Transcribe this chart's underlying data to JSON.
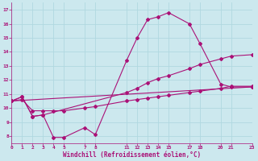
{
  "xlabel": "Windchill (Refroidissement éolien,°C)",
  "bg_color": "#cce8ee",
  "grid_color": "#b0d8e0",
  "line_color": "#aa1177",
  "ylim": [
    7.5,
    17.5
  ],
  "xlim": [
    0,
    23
  ],
  "ytick_vals": [
    8,
    9,
    10,
    11,
    12,
    13,
    14,
    15,
    16,
    17
  ],
  "xtick_vals": [
    0,
    1,
    2,
    3,
    4,
    5,
    7,
    8,
    11,
    12,
    13,
    14,
    15,
    17,
    18,
    20,
    21,
    23
  ],
  "xtick_labels": [
    "0",
    "1",
    "2",
    "3",
    "4",
    "5",
    "7",
    "8",
    "11",
    "12",
    "13",
    "14",
    "15",
    "17",
    "18",
    "20",
    "21",
    "23"
  ],
  "line1_x": [
    0,
    1,
    2,
    3,
    4,
    5,
    7,
    8,
    11,
    12,
    13,
    14,
    15,
    17,
    18,
    20,
    21,
    23
  ],
  "line1_y": [
    10.5,
    10.8,
    9.4,
    9.5,
    7.9,
    7.9,
    8.6,
    8.1,
    13.4,
    15.0,
    16.3,
    16.5,
    16.8,
    16.0,
    14.6,
    11.7,
    11.5,
    11.5
  ],
  "line2_x": [
    0,
    1,
    2,
    3,
    11,
    12,
    13,
    14,
    15,
    17,
    18,
    20,
    21,
    23
  ],
  "line2_y": [
    10.5,
    10.8,
    9.4,
    9.5,
    11.1,
    11.4,
    11.8,
    12.1,
    12.3,
    12.8,
    13.1,
    13.5,
    13.7,
    13.8
  ],
  "line3_x": [
    0,
    1,
    2,
    3,
    4,
    5,
    7,
    8,
    11,
    12,
    13,
    14,
    15,
    17,
    18,
    20,
    21,
    23
  ],
  "line3_y": [
    10.5,
    10.6,
    9.8,
    9.8,
    9.8,
    9.8,
    10.0,
    10.1,
    10.5,
    10.6,
    10.7,
    10.8,
    10.9,
    11.1,
    11.2,
    11.4,
    11.55,
    11.55
  ],
  "line4_x": [
    0,
    23
  ],
  "line4_y": [
    10.5,
    11.5
  ]
}
